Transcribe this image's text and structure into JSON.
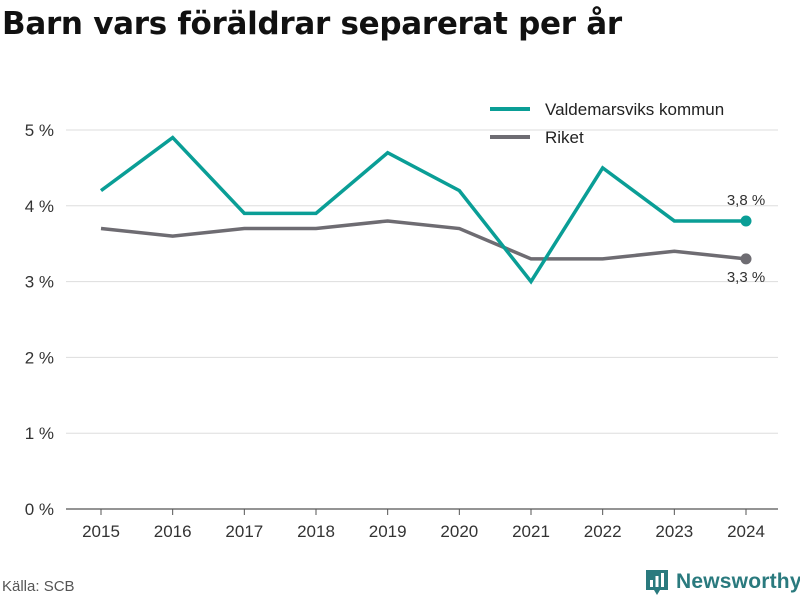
{
  "title": "Barn vars föräldrar separerat per år",
  "source": "Källa: SCB",
  "brand": {
    "name": "Newsworthy",
    "color": "#2a7a7e"
  },
  "chart_data": {
    "type": "line",
    "x": [
      "2015",
      "2016",
      "2017",
      "2018",
      "2019",
      "2020",
      "2021",
      "2022",
      "2023",
      "2024"
    ],
    "series": [
      {
        "name": "Valdemarsviks kommun",
        "color": "#0a9e96",
        "values": [
          4.2,
          4.9,
          3.9,
          3.9,
          4.7,
          4.2,
          3.0,
          4.5,
          3.8,
          3.8
        ],
        "end_label": "3,8 %"
      },
      {
        "name": "Riket",
        "color": "#6e6c72",
        "values": [
          3.7,
          3.6,
          3.7,
          3.7,
          3.8,
          3.7,
          3.3,
          3.3,
          3.4,
          3.3
        ],
        "end_label": "3,3 %"
      }
    ],
    "yticks": [
      0,
      1,
      2,
      3,
      4,
      5
    ],
    "ytick_labels": [
      "0 %",
      "1 %",
      "2 %",
      "3 %",
      "4 %",
      "5 %"
    ],
    "ylim": [
      0,
      5
    ],
    "grid": true,
    "legend_position": "top-right"
  }
}
